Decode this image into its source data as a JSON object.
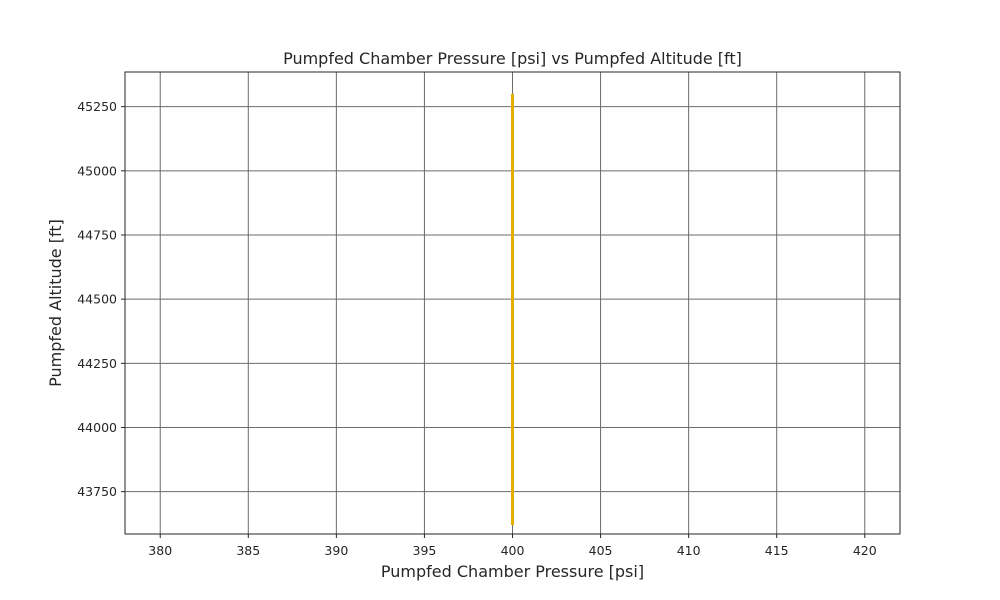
{
  "chart_data": {
    "type": "line",
    "title": "Pumpfed Chamber Pressure [psi] vs Pumpfed Altitude [ft]",
    "xlabel": "Pumpfed Chamber Pressure [psi]",
    "ylabel": "Pumpfed Altitude [ft]",
    "xlim": [
      378,
      422
    ],
    "ylim": [
      43585,
      45385
    ],
    "xticks": [
      380,
      385,
      390,
      395,
      400,
      405,
      410,
      415,
      420
    ],
    "yticks": [
      43750,
      44000,
      44250,
      44500,
      44750,
      45000,
      45250
    ],
    "grid": true,
    "series": [
      {
        "x": [
          400,
          400
        ],
        "y": [
          43620,
          45300
        ],
        "color": "#e6ac00"
      }
    ]
  }
}
